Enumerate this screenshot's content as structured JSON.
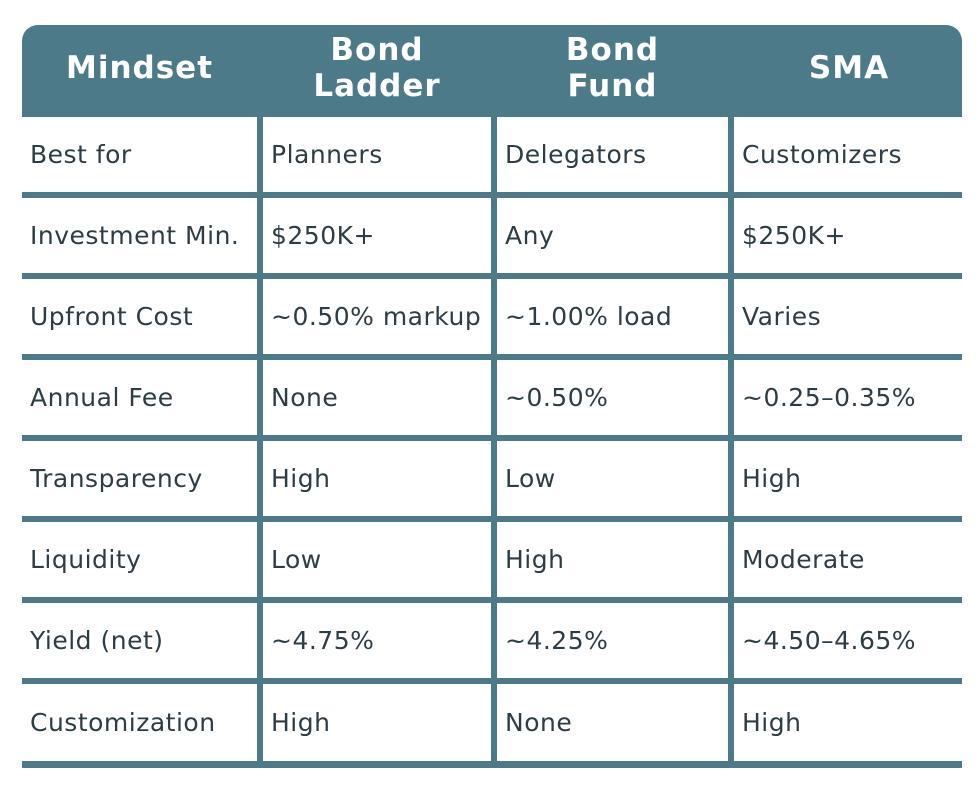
{
  "chart_data": {
    "type": "table",
    "columns": [
      "Mindset",
      "Bond Ladder",
      "Bond Fund",
      "SMA"
    ],
    "header_lines": [
      [
        "Mindset"
      ],
      [
        "Bond",
        "Ladder"
      ],
      [
        "Bond",
        "Fund"
      ],
      [
        "SMA"
      ]
    ],
    "rows": [
      [
        "Best for",
        "Planners",
        "Delegators",
        "Customizers"
      ],
      [
        "Investment Min.",
        "$250K+",
        "Any",
        "$250K+"
      ],
      [
        "Upfront Cost",
        "~0.50% markup",
        "~1.00% load",
        "Varies"
      ],
      [
        "Annual Fee",
        "None",
        "~0.50%",
        "~0.25–0.35%"
      ],
      [
        "Transparency",
        "High",
        "Low",
        "High"
      ],
      [
        "Liquidity",
        "Low",
        "High",
        "Moderate"
      ],
      [
        "Yield (net)",
        "~4.75%",
        "~4.25%",
        "~4.50–4.65%"
      ],
      [
        "Customization",
        "High",
        "None",
        "High"
      ]
    ]
  },
  "colors": {
    "header_bg": "#4c7a88",
    "header_text": "#ffffff",
    "cell_bg": "#ffffff",
    "cell_text": "#2e3d45"
  }
}
